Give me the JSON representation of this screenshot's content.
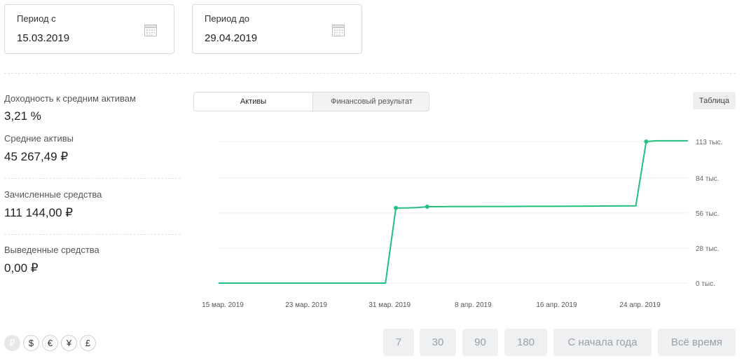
{
  "period_from": {
    "label": "Период с",
    "value": "15.03.2019",
    "icon": "calendar-icon"
  },
  "period_to": {
    "label": "Период до",
    "value": "29.04.2019",
    "icon": "calendar-icon"
  },
  "metrics": [
    {
      "label": "Доходность к средним активам",
      "value": "3,21 %"
    },
    {
      "label": "Средние активы",
      "value": "45 267,49 ₽"
    },
    {
      "label": "Зачисленные средства",
      "value": "111 144,00 ₽"
    },
    {
      "label": "Выведенные средства",
      "value": "0,00 ₽"
    }
  ],
  "tabs": [
    {
      "label": "Активы",
      "active": true
    },
    {
      "label": "Финансовый результат",
      "active": false
    }
  ],
  "table_button": "Таблица",
  "chart_data": {
    "type": "line",
    "title": "",
    "xlabel": "",
    "ylabel": "",
    "x_ticks": [
      "15 мар. 2019",
      "23 мар. 2019",
      "31 мар. 2019",
      "8 апр. 2019",
      "16 апр. 2019",
      "24 апр. 2019"
    ],
    "y_ticks": [
      "0 тыс.",
      "28 тыс.",
      "56 тыс.",
      "84 тыс.",
      "113 тыс."
    ],
    "y_tick_values": [
      0,
      28,
      56,
      84,
      113
    ],
    "ylim": [
      0,
      113
    ],
    "grid": true,
    "color": "#22bf80",
    "x_range": [
      "2019-03-15",
      "2019-04-29"
    ],
    "series": [
      {
        "x": [
          "2019-03-15",
          "2019-03-17",
          "2019-03-19",
          "2019-03-21",
          "2019-03-23",
          "2019-03-25",
          "2019-03-27",
          "2019-03-29",
          "2019-03-31",
          "2019-04-01",
          "2019-04-02",
          "2019-04-03",
          "2019-04-04",
          "2019-04-06",
          "2019-04-08",
          "2019-04-10",
          "2019-04-12",
          "2019-04-14",
          "2019-04-16",
          "2019-04-18",
          "2019-04-20",
          "2019-04-22",
          "2019-04-24",
          "2019-04-25",
          "2019-04-26",
          "2019-04-28",
          "2019-04-29"
        ],
        "y": [
          0,
          0,
          0,
          0,
          0,
          0,
          0,
          0,
          0,
          60.0,
          60.0,
          60.3,
          61.0,
          61.1,
          61.1,
          61.2,
          61.2,
          61.3,
          61.3,
          61.4,
          61.5,
          61.6,
          61.7,
          113.0,
          113.6,
          113.6,
          113.6
        ],
        "markers": [
          "2019-04-01",
          "2019-04-04",
          "2019-04-25"
        ]
      }
    ]
  },
  "currencies": [
    {
      "symbol": "₽",
      "active": true
    },
    {
      "symbol": "$",
      "active": false
    },
    {
      "symbol": "€",
      "active": false
    },
    {
      "symbol": "¥",
      "active": false
    },
    {
      "symbol": "£",
      "active": false
    }
  ],
  "period_buttons": [
    "7",
    "30",
    "90",
    "180",
    "С начала года",
    "Всё время"
  ]
}
